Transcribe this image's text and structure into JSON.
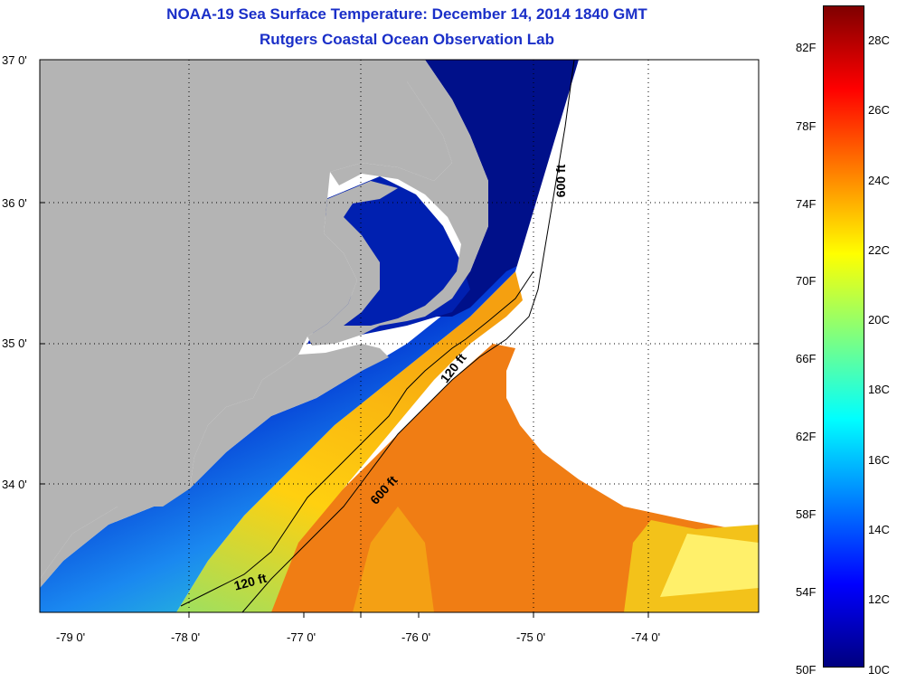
{
  "title": "NOAA-19 Sea Surface Temperature:  December 14, 2014 1840 GMT",
  "subtitle": "Rutgers Coastal Ocean Observation Lab",
  "lat_labels": [
    "37 0'",
    "36 0'",
    "35 0'",
    "34 0'"
  ],
  "lon_labels": [
    "-79 0'",
    "-78 0'",
    "-77 0'",
    "-76 0'",
    "-75 0'",
    "-74 0'"
  ],
  "isobath_labels": [
    "600 ft",
    "120 ft",
    "600 ft",
    "120 ft"
  ],
  "colorbar": {
    "fahrenheit": [
      "82F",
      "78F",
      "74F",
      "70F",
      "66F",
      "62F",
      "58F",
      "54F",
      "50F"
    ],
    "celsius": [
      "28C",
      "26C",
      "24C",
      "22C",
      "20C",
      "18C",
      "16C",
      "14C",
      "12C",
      "10C"
    ],
    "min_c": 10,
    "max_c": 29.2,
    "gradient_colors": [
      "#00007f",
      "#0000ff",
      "#007fff",
      "#00ffff",
      "#7fff7f",
      "#ffff00",
      "#ff7f00",
      "#ff0000",
      "#7f0000"
    ]
  },
  "colors": {
    "land": "#b4b4b4",
    "no_data": "#ffffff",
    "title": "#1a2fc8"
  }
}
